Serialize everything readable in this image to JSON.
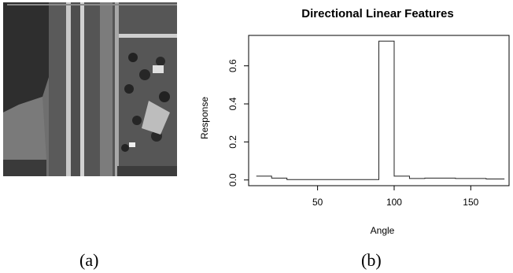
{
  "figure": {
    "caption_a": "(a)",
    "caption_b": "(b)"
  },
  "panel_a": {
    "content": "grayscale aerial image of a divided highway with adjacent trees and a residential area"
  },
  "chart_data": {
    "type": "line",
    "style": "step",
    "title": "Directional Linear Features",
    "xlabel": "Angle",
    "ylabel": "Response",
    "xlim": [
      5,
      175
    ],
    "ylim": [
      -0.03,
      0.76
    ],
    "xticks": [
      50,
      100,
      150
    ],
    "yticks": [
      0.0,
      0.2,
      0.4,
      0.6
    ],
    "ytick_labels": [
      "0.0",
      "0.2",
      "0.4",
      "0.6"
    ],
    "grid": false,
    "legend": "none",
    "x": [
      10,
      20,
      30,
      40,
      50,
      60,
      70,
      80,
      90,
      100,
      110,
      120,
      130,
      140,
      150,
      160,
      170
    ],
    "y": [
      0.02,
      0.01,
      0.002,
      0.002,
      0.002,
      0.002,
      0.002,
      0.002,
      0.73,
      0.02,
      0.008,
      0.01,
      0.01,
      0.008,
      0.008,
      0.005,
      0.005
    ]
  }
}
